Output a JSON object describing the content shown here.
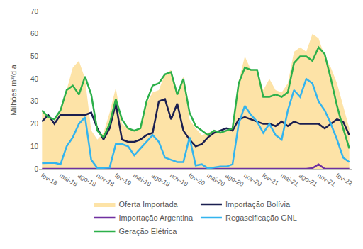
{
  "chart_data": {
    "type": "line",
    "y_label": "Milhões m³/dia",
    "categories": [
      "fev-18",
      null,
      null,
      "mai-18",
      null,
      null,
      "ago-18",
      null,
      null,
      "nov-18",
      null,
      null,
      "fev-19",
      null,
      null,
      "mai-19",
      null,
      null,
      "ago-19",
      null,
      null,
      "nov-19",
      null,
      null,
      "fev-20",
      null,
      null,
      "mai-20",
      null,
      null,
      "ago-20",
      null,
      null,
      "nov-20",
      null,
      null,
      "fev-21",
      null,
      null,
      "mai-21",
      null,
      null,
      "ago-21",
      null,
      null,
      "nov-21",
      null,
      null,
      "fev-22",
      null,
      null
    ],
    "series": [
      {
        "name": "Oferta Importada",
        "type": "area",
        "color": "#fde3a7",
        "values": [
          26,
          23,
          21,
          26,
          35,
          45,
          48,
          40,
          17,
          13,
          16,
          25,
          36,
          20,
          18,
          17,
          18,
          29,
          34,
          35,
          42,
          44,
          33,
          41,
          22,
          18,
          15,
          16,
          17,
          16,
          17,
          18,
          39,
          50,
          44,
          44,
          35,
          40,
          35,
          34,
          38,
          52,
          54,
          52,
          60,
          58,
          50,
          45,
          38,
          28,
          18
        ]
      },
      {
        "name": "Importação Bolívia",
        "type": "line",
        "color": "#1b1f50",
        "values": [
          21,
          24,
          20,
          24,
          24,
          24,
          24,
          24,
          25,
          18,
          13,
          18,
          29,
          13,
          12,
          12,
          13,
          15,
          16,
          30,
          31,
          22,
          29,
          17,
          13,
          10,
          11,
          14,
          16,
          17,
          18,
          17,
          22,
          23,
          22,
          21,
          20,
          20,
          19,
          21,
          19,
          21,
          20,
          20,
          20,
          20,
          18,
          20,
          22,
          21,
          15
        ]
      },
      {
        "name": "Importação Argentina",
        "type": "line",
        "color": "#7030a0",
        "values": [
          0,
          0,
          0,
          0,
          0,
          0,
          0,
          0,
          0,
          0,
          0,
          0,
          0,
          0,
          0,
          0,
          0,
          0,
          0,
          0,
          0,
          0,
          0,
          0,
          0,
          0,
          0,
          0,
          0,
          0,
          0,
          0,
          0,
          0,
          0,
          0,
          0,
          0,
          0,
          0,
          0,
          0,
          0,
          0,
          0.3,
          2,
          0,
          0,
          0,
          0,
          0
        ]
      },
      {
        "name": "Regaseificação GNL",
        "type": "line",
        "color": "#33b4ee",
        "values": [
          2.5,
          2.5,
          2.7,
          2,
          10,
          14,
          20,
          23,
          4,
          0.3,
          0.5,
          0.5,
          11,
          11,
          10,
          6,
          9,
          12,
          15,
          12,
          5,
          4,
          3,
          3,
          14,
          1.5,
          2,
          0.2,
          0.5,
          1,
          1,
          2,
          20,
          28,
          24,
          21,
          16,
          20,
          15,
          13,
          26,
          35,
          32,
          40,
          38,
          30,
          26,
          20,
          13,
          5,
          3
        ]
      },
      {
        "name": "Geração Elétrica",
        "type": "line",
        "color": "#2cb04a",
        "values": [
          26,
          23,
          22,
          26,
          35,
          37,
          33,
          41,
          33,
          17,
          14,
          20,
          31,
          22,
          18,
          17,
          18,
          30,
          37,
          38,
          42,
          43,
          33,
          40,
          25,
          19,
          17,
          15,
          17,
          16,
          17,
          18,
          38,
          45,
          44,
          44,
          32,
          32,
          33,
          32,
          34,
          47,
          50,
          50,
          48,
          54,
          51,
          40,
          28,
          18,
          9
        ]
      }
    ],
    "ylim": [
      0,
      70
    ],
    "yticks": [
      0,
      10,
      20,
      30,
      40,
      50,
      60,
      70
    ],
    "grid": false,
    "legend": "bottom"
  }
}
